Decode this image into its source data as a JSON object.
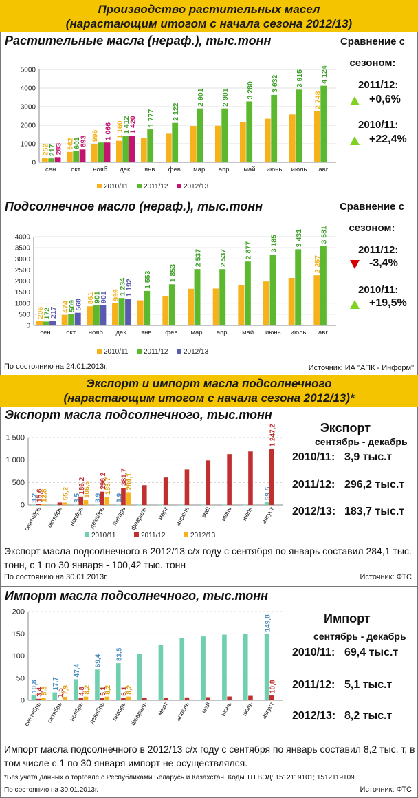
{
  "header1": {
    "line1": "Производство растительных масел",
    "line2": "(нарастающим итогом с начала сезона 2012/13)"
  },
  "header2": {
    "line1": "Экспорт и импорт масла подсолнечного",
    "line2": "(нарастающим итогом с начала сезона 2012/13)*"
  },
  "colors": {
    "header": "#f5c400",
    "orange": "#f5b21d",
    "green": "#5cb82e",
    "magenta": "#c2156f",
    "navy": "#5a5ab0",
    "teal": "#6fd0b0",
    "red": "#c0302f"
  },
  "panel1": {
    "title": "Растительные масла (нераф.), тыс.тонн",
    "compare_title_1": "Сравнение с",
    "compare_title_2": "сезоном:",
    "cmp1_label": "2011/12:",
    "cmp1_value": "+0,6%",
    "cmp1_dir": "up",
    "cmp2_label": "2010/11:",
    "cmp2_value": "+22,4%",
    "cmp2_dir": "up"
  },
  "panel2": {
    "title": "Подсолнечное масло (нераф.), тыс.тонн",
    "compare_title_1": "Сравнение с",
    "compare_title_2": "сезоном:",
    "cmp1_label": "2011/12:",
    "cmp1_value": "-3,4%",
    "cmp1_dir": "down",
    "cmp2_label": "2010/11:",
    "cmp2_value": "+19,5%",
    "cmp2_dir": "up",
    "date_note": "По состоянию на 24.01.2013г.",
    "source_note": "Источник: ИА \"АПК - Информ\""
  },
  "panel3": {
    "title": "Экспорт масла подсолнечного, тыс.тонн",
    "side_title": "Экспорт",
    "side_sub": "сентябрь - декабрь",
    "rows": [
      {
        "label": "2010/11:",
        "value": "3,9 тыс.т"
      },
      {
        "label": "2011/12:",
        "value": "296,2 тыс.т"
      },
      {
        "label": "2012/13:",
        "value": "183,7 тыс.т"
      }
    ],
    "paragraph": "Экспорт масла подсолнечного в 2012/13 с/х году с сентября по январь составил 284,1 тыс. тонн, с 1 по 30 января - 100,42 тыс. тонн",
    "date_note": "По состоянию на 30.01.2013г.",
    "source_note": "Источник: ФТС"
  },
  "panel4": {
    "title": "Импорт масла подсолнечного, тыс.тонн",
    "side_title": "Импорт",
    "side_sub": "сентябрь - декабрь",
    "rows": [
      {
        "label": "2010/11:",
        "value": "69,4 тыс.т"
      },
      {
        "label": "2011/12:",
        "value": "5,1 тыс.т"
      },
      {
        "label": "2012/13:",
        "value": "8,2 тыс.т"
      }
    ],
    "paragraph": "Импорт масла подсолнечного  в 2012/13 с/х году с сентября по  январь составил 8,2 тыс. т, в том числе с 1 по 30 января импорт не осуществлялся.",
    "footnote": "*Без учета данных о торговле с Республиками Беларусь и Казахстан. Коды ТН ВЭД: 1512119101; 1512119109",
    "date_note": "По состоянию на 30.01.2013г.",
    "source_note": "Источник: ФТС"
  },
  "chart_data": [
    {
      "type": "bar",
      "title": "Растительные масла (нераф.), тыс.тонн",
      "categories": [
        "сен.",
        "окт.",
        "нояб.",
        "дек.",
        "янв.",
        "фев.",
        "мар.",
        "апр.",
        "май",
        "июнь",
        "июль",
        "авг."
      ],
      "ylim": [
        0,
        5000
      ],
      "yticks": [
        0,
        1000,
        2000,
        3000,
        4000,
        5000
      ],
      "series": [
        {
          "name": "2010/11",
          "color": "#f5b21d",
          "values": [
            252,
            562,
            996,
            1160,
            1330,
            1540,
            1960,
            1970,
            2150,
            2350,
            2580,
            2748
          ],
          "labels": [
            "252",
            "562",
            "996",
            "1 160",
            "",
            "",
            "",
            "",
            "",
            "",
            "",
            "2 748"
          ]
        },
        {
          "name": "2011/12",
          "color": "#5cb82e",
          "values": [
            217,
            601,
            1066,
            1412,
            1777,
            2122,
            2901,
            2901,
            3280,
            3632,
            3915,
            4124
          ],
          "labels": [
            "217",
            "601",
            "",
            "1 412",
            "1 777",
            "2 122",
            "2 901",
            "2 901",
            "3 280",
            "3 632",
            "3 915",
            "4 124"
          ]
        },
        {
          "name": "2012/13",
          "color": "#c2156f",
          "values": [
            283,
            693,
            1066,
            1420,
            null,
            null,
            null,
            null,
            null,
            null,
            null,
            null
          ],
          "labels": [
            "283",
            "693",
            "1 066",
            "1 420",
            "",
            "",
            "",
            "",
            "",
            "",
            "",
            ""
          ]
        }
      ]
    },
    {
      "type": "bar",
      "title": "Подсолнечное масло (нераф.), тыс.тонн",
      "categories": [
        "сен.",
        "окт.",
        "нояб.",
        "дек.",
        "янв.",
        "фев.",
        "мар.",
        "апр.",
        "май",
        "июнь",
        "июль",
        "авг."
      ],
      "ylim": [
        0,
        4000
      ],
      "yticks": [
        0,
        500,
        1000,
        1500,
        2000,
        2500,
        3000,
        3500,
        4000
      ],
      "series": [
        {
          "name": "2010/11",
          "color": "#f5b21d",
          "values": [
            206,
            474,
            861,
            999,
            1130,
            1320,
            1650,
            1660,
            1820,
            1980,
            2140,
            2257
          ],
          "labels": [
            "206",
            "474",
            "861",
            "999",
            "",
            "",
            "",
            "",
            "",
            "",
            "",
            "2 257"
          ]
        },
        {
          "name": "2011/12",
          "color": "#5cb82e",
          "values": [
            172,
            509,
            901,
            1234,
            1553,
            1853,
            2537,
            2537,
            2877,
            3185,
            3431,
            3581
          ],
          "labels": [
            "172",
            "509",
            "901",
            "1 234",
            "1 553",
            "1 853",
            "2 537",
            "2 537",
            "2 877",
            "3 185",
            "3 431",
            "3 581"
          ]
        },
        {
          "name": "2012/13",
          "color": "#5a5ab0",
          "values": [
            217,
            568,
            901,
            1192,
            null,
            null,
            null,
            null,
            null,
            null,
            null,
            null
          ],
          "labels": [
            "217",
            "568",
            "901",
            "1 192",
            "",
            "",
            "",
            "",
            "",
            "",
            "",
            ""
          ]
        }
      ]
    },
    {
      "type": "bar",
      "title": "Экспорт масла подсолнечного, тыс.тонн",
      "categories": [
        "сентябрь",
        "октябрь",
        "ноябрь",
        "декабрь",
        "январь",
        "февраль",
        "март",
        "апрель",
        "май",
        "июнь",
        "июль",
        "август"
      ],
      "ylim": [
        0,
        1500
      ],
      "yticks": [
        0,
        500,
        1000,
        1500
      ],
      "ytick_labels": [
        "0",
        "500",
        "1 000",
        "1 500"
      ],
      "series": [
        {
          "name": "2010/11",
          "color": "#6fd0b0",
          "values": [
            3.2,
            3.4,
            3.5,
            3.9,
            3.9,
            3.9,
            4,
            4,
            4,
            4,
            4,
            59.5
          ],
          "labels": [
            "3,2",
            "",
            "3,5",
            "3,9",
            "3,9",
            "",
            "",
            "",
            "",
            "",
            "",
            "59,5"
          ]
        },
        {
          "name": "2011/12",
          "color": "#c0302f",
          "values": [
            15.6,
            55.2,
            186.2,
            296.2,
            381.7,
            440,
            610,
            790,
            990,
            1130,
            1190,
            1247.2
          ],
          "labels": [
            "15,6",
            "",
            "186,2",
            "296,2",
            "381,7",
            "",
            "",
            "",
            "",
            "",
            "",
            "1 247,2"
          ]
        },
        {
          "name": "2012/13",
          "color": "#f5b21d",
          "values": [
            12.8,
            55.2,
            106.6,
            183.7,
            284.1,
            null,
            null,
            null,
            null,
            null,
            null,
            null
          ],
          "labels": [
            "12,8",
            "55,2",
            "106,6",
            "183,7",
            "284,1",
            "",
            "",
            "",
            "",
            "",
            "",
            ""
          ]
        }
      ]
    },
    {
      "type": "bar",
      "title": "Импорт масла подсолнечного, тыс.тонн",
      "categories": [
        "сентябрь",
        "октябрь",
        "ноябрь",
        "декабрь",
        "январь",
        "февраль",
        "март",
        "апрель",
        "май",
        "июнь",
        "июль",
        "август"
      ],
      "ylim": [
        0,
        200
      ],
      "yticks": [
        0,
        50,
        100,
        150,
        200
      ],
      "series": [
        {
          "name": "2010/11",
          "color": "#6fd0b0",
          "values": [
            10.8,
            17.7,
            47.4,
            69.4,
            83.5,
            105,
            125,
            140,
            144,
            148,
            149,
            149.8
          ],
          "labels": [
            "10,8",
            "17,7",
            "47,4",
            "69,4",
            "83,5",
            "",
            "",
            "",
            "",
            "",
            "",
            "149,8"
          ]
        },
        {
          "name": "2011/12",
          "color": "#c0302f",
          "values": [
            3.4,
            1.5,
            4.8,
            5.1,
            5.1,
            5.5,
            6,
            6.5,
            7,
            8.5,
            10,
            10.8
          ],
          "labels": [
            "3,4",
            "1,5",
            "4,8",
            "5,1",
            "5,1",
            "",
            "",
            "",
            "",
            "",
            "",
            "10,8"
          ]
        },
        {
          "name": "2012/13",
          "color": "#f5b21d",
          "values": [
            5.8,
            7.9,
            8.2,
            8.2,
            8.2,
            null,
            null,
            null,
            null,
            null,
            null,
            null
          ],
          "labels": [
            "5,8",
            "7,9",
            "8,2",
            "8,2",
            "8,2",
            "",
            "",
            "",
            "",
            "",
            "",
            ""
          ]
        }
      ]
    }
  ]
}
